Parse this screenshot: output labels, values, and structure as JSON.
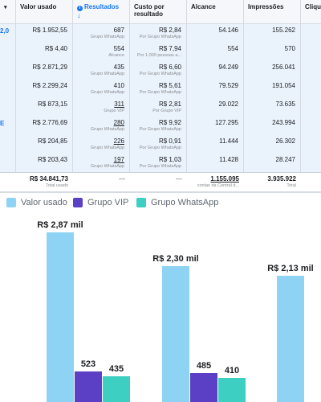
{
  "table": {
    "headers": {
      "valor_usado": "Valor usado",
      "resultados": "Resultados",
      "custo_por_resultado": "Custo por resultado",
      "alcance": "Alcance",
      "impressoes": "Impressões",
      "cliques": "Clique"
    },
    "rows": [
      {
        "name_frag": "2,0",
        "valor": "R$ 1.952,55",
        "resultados": "687",
        "resultados_sub": "Grupo WhatsApp",
        "custo": "R$ 2,84",
        "custo_sub": "Por Grupo WhatsApp",
        "alcance": "54.146",
        "impressoes": "155.262"
      },
      {
        "name_frag": "",
        "valor": "R$ 4,40",
        "resultados": "554",
        "resultados_sub": "Alcance",
        "custo": "R$ 7,94",
        "custo_sub": "Por 1.000 pessoas a...",
        "alcance": "554",
        "impressoes": "570"
      },
      {
        "name_frag": "",
        "valor": "R$ 2.871,29",
        "resultados": "435",
        "resultados_sub": "Grupo WhatsApp",
        "custo": "R$ 6,60",
        "custo_sub": "Por Grupo WhatsApp",
        "alcance": "94.249",
        "impressoes": "256.041"
      },
      {
        "name_frag": "",
        "valor": "R$ 2.299,24",
        "resultados": "410",
        "resultados_sub": "Grupo WhatsApp",
        "custo": "R$ 5,61",
        "custo_sub": "Por Grupo WhatsApp",
        "alcance": "79.529",
        "impressoes": "191.054"
      },
      {
        "name_frag": "",
        "valor": "R$ 873,15",
        "resultados": "311",
        "resultados_sub": "Grupo VIP",
        "custo": "R$ 2,81",
        "custo_sub": "Por Grupo VIP",
        "alcance": "29.022",
        "impressoes": "73.635"
      },
      {
        "name_frag": "E",
        "valor": "R$ 2.776,69",
        "resultados": "280",
        "resultados_sub": "Grupo WhatsApp",
        "custo": "R$ 9,92",
        "custo_sub": "Por Grupo WhatsApp",
        "alcance": "127.295",
        "impressoes": "243.994"
      },
      {
        "name_frag": "",
        "valor": "R$ 204,85",
        "resultados": "226",
        "resultados_sub": "Grupo WhatsApp",
        "custo": "R$ 0,91",
        "custo_sub": "Por Grupo WhatsApp",
        "alcance": "11.444",
        "impressoes": "26.302"
      },
      {
        "name_frag": "",
        "valor": "R$ 203,43",
        "resultados": "197",
        "resultados_sub": "Grupo WhatsApp",
        "custo": "R$ 1,03",
        "custo_sub": "Por Grupo WhatsApp",
        "alcance": "11.428",
        "impressoes": "28.247"
      }
    ],
    "totals": {
      "valor": "R$ 34.841,73",
      "valor_sub": "Total usado",
      "resultados": "—",
      "custo": "—",
      "alcance": "1.155.095",
      "alcance_sub": "contas da Central d...",
      "impressoes": "3.935.922",
      "impressoes_sub": "Total"
    }
  },
  "legend": [
    {
      "label": "Valor usado",
      "color": "#8fd3f4"
    },
    {
      "label": "Grupo VIP",
      "color": "#5b3fc4"
    },
    {
      "label": "Grupo WhatsApp",
      "color": "#3ecfc3"
    }
  ],
  "chart_data": {
    "type": "bar",
    "categories": [
      "",
      "",
      ""
    ],
    "series": [
      {
        "name": "Valor usado",
        "values": [
          2870,
          2300,
          2130
        ],
        "labels": [
          "R$ 2,87 mil",
          "R$ 2,30 mil",
          "R$ 2,13 mil"
        ],
        "color": "#8fd3f4"
      },
      {
        "name": "Grupo VIP",
        "values": [
          523,
          485,
          null
        ],
        "labels": [
          "523",
          "485",
          ""
        ],
        "color": "#5b3fc4"
      },
      {
        "name": "Grupo WhatsApp",
        "values": [
          435,
          410,
          null
        ],
        "labels": [
          "435",
          "410",
          ""
        ],
        "color": "#3ecfc3"
      }
    ]
  }
}
